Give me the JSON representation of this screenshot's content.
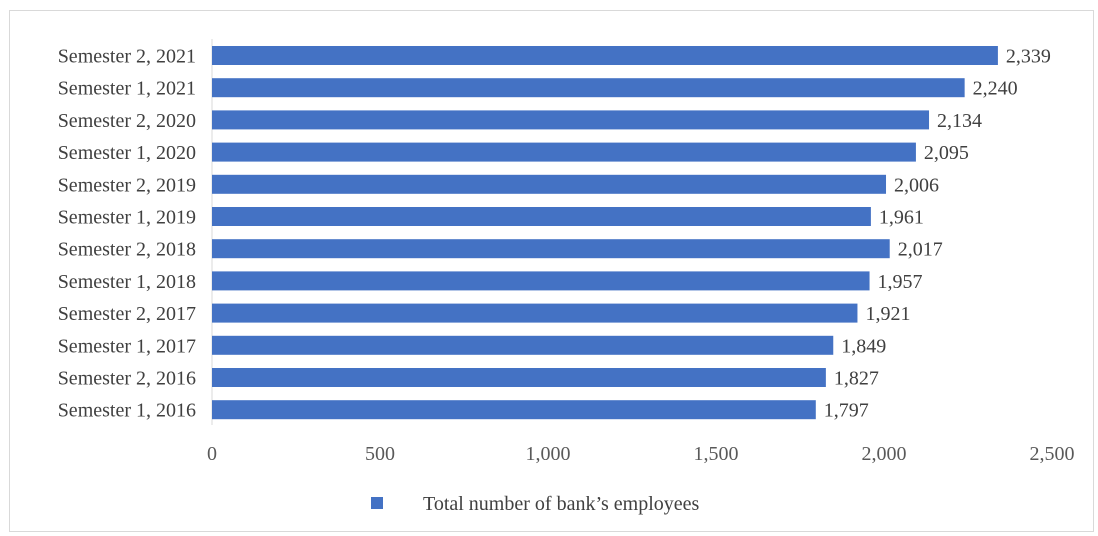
{
  "chart_data": {
    "type": "bar",
    "orientation": "horizontal",
    "categories": [
      "Semester 2, 2021",
      "Semester 1, 2021",
      "Semester 2, 2020",
      "Semester 1, 2020",
      "Semester 2, 2019",
      "Semester 1, 2019",
      "Semester 2, 2018",
      "Semester 1, 2018",
      "Semester 2, 2017",
      "Semester 1, 2017",
      "Semester 2, 2016",
      "Semester 1, 2016"
    ],
    "series": [
      {
        "name": "Total number of bank’s employees",
        "values": [
          2339,
          2240,
          2134,
          2095,
          2006,
          1961,
          2017,
          1957,
          1921,
          1849,
          1827,
          1797
        ],
        "data_labels": [
          "2,339",
          "2,240",
          "2,134",
          "2,095",
          "2,006",
          "1,961",
          "2,017",
          "1,957",
          "1,921",
          "1,849",
          "1,827",
          "1,797"
        ],
        "color": "#4472c4"
      }
    ],
    "x_ticks": [
      0,
      500,
      1000,
      1500,
      2000,
      2500
    ],
    "x_tick_labels": [
      "0",
      "500",
      "1,000",
      "1,500",
      "2,000",
      "2,500"
    ],
    "xlim": [
      0,
      2500
    ],
    "grid": false,
    "legend_position": "bottom"
  }
}
